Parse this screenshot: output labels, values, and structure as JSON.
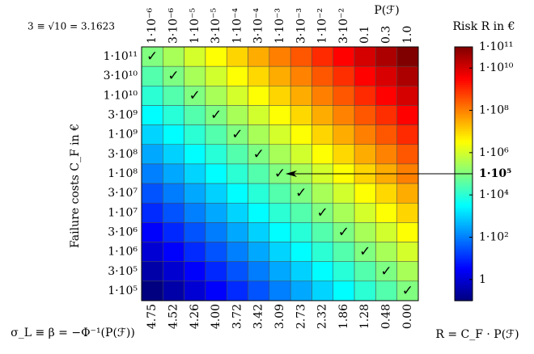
{
  "chart_data": {
    "type": "heatmap",
    "title": "P(ℱ)",
    "corner_note": "3 ≡ √10 = 3.1623",
    "y_label": "Failure costs C_F in €",
    "x2_label": "σ_L ≡ β = −Φ⁻¹(P(ℱ))",
    "colorbar_label": "Risk R in €",
    "formula": "R = C_F · P(ℱ)",
    "colormap": "jet",
    "log_scale": true,
    "columns": [
      "1·10⁻⁶",
      "3·10⁻⁶",
      "1·10⁻⁵",
      "3·10⁻⁵",
      "1·10⁻⁴",
      "3·10⁻⁴",
      "1·10⁻³",
      "3·10⁻³",
      "1·10⁻²",
      "3·10⁻²",
      "0.1",
      "0.3",
      "1.0"
    ],
    "beta_labels": [
      "4.75",
      "4.52",
      "4.26",
      "4.00",
      "3.72",
      "3.42",
      "3.09",
      "2.73",
      "2.32",
      "1.86",
      "1.28",
      "0.48",
      "0.00"
    ],
    "rows": [
      "1·10¹¹",
      "3·10¹⁰",
      "1·10¹⁰",
      "3·10⁹",
      "1·10⁹",
      "3·10⁸",
      "1·10⁸",
      "3·10⁷",
      "1·10⁷",
      "3·10⁶",
      "1·10⁶",
      "3·10⁵",
      "1·10⁵"
    ],
    "values": [
      [
        100000.0,
        300000.0,
        1000000.0,
        3000000.0,
        10000000.0,
        30000000.0,
        100000000.0,
        300000000.0,
        1000000000.0,
        3000000000.0,
        10000000000.0,
        30000000000.0,
        100000000000.0
      ],
      [
        30000.0,
        90000.0,
        300000.0,
        900000.0,
        3000000.0,
        9000000.0,
        30000000.0,
        90000000.0,
        300000000.0,
        900000000.0,
        3000000000.0,
        9000000000.0,
        30000000000.0
      ],
      [
        10000.0,
        30000.0,
        100000.0,
        300000.0,
        1000000.0,
        3000000.0,
        10000000.0,
        30000000.0,
        100000000.0,
        300000000.0,
        1000000000.0,
        3000000000.0,
        10000000000.0
      ],
      [
        3000.0,
        9000.0,
        30000.0,
        90000.0,
        300000.0,
        900000.0,
        3000000.0,
        9000000.0,
        30000000.0,
        90000000.0,
        300000000.0,
        900000000.0,
        3000000000.0
      ],
      [
        1000.0,
        3000.0,
        10000.0,
        30000.0,
        100000.0,
        300000.0,
        1000000.0,
        3000000.0,
        10000000.0,
        30000000.0,
        100000000.0,
        300000000.0,
        1000000000.0
      ],
      [
        300,
        900,
        3000.0,
        9000.0,
        30000.0,
        90000.0,
        300000.0,
        900000.0,
        3000000.0,
        9000000.0,
        30000000.0,
        90000000.0,
        300000000.0
      ],
      [
        100,
        300,
        1000.0,
        3000.0,
        10000.0,
        30000.0,
        100000.0,
        300000.0,
        1000000.0,
        3000000.0,
        10000000.0,
        30000000.0,
        100000000.0
      ],
      [
        30,
        90,
        300,
        900,
        3000.0,
        9000.0,
        30000.0,
        90000.0,
        300000.0,
        900000.0,
        3000000.0,
        9000000.0,
        30000000.0
      ],
      [
        10,
        30,
        100,
        300,
        1000.0,
        3000.0,
        10000.0,
        30000.0,
        100000.0,
        300000.0,
        1000000.0,
        3000000.0,
        10000000.0
      ],
      [
        3,
        9,
        30,
        90,
        300,
        900,
        3000.0,
        9000.0,
        30000.0,
        90000.0,
        300000.0,
        900000.0,
        3000000.0
      ],
      [
        1,
        3,
        10,
        30,
        100,
        300,
        1000.0,
        3000.0,
        10000.0,
        30000.0,
        100000.0,
        300000.0,
        1000000.0
      ],
      [
        0.3,
        0.9,
        3,
        9,
        30,
        90,
        300,
        900,
        3000.0,
        9000.0,
        30000.0,
        90000.0,
        300000.0
      ],
      [
        0.1,
        0.3,
        1,
        3,
        10,
        30,
        100,
        300,
        1000.0,
        3000.0,
        10000.0,
        30000.0,
        100000.0
      ]
    ],
    "diagonal_marks": [
      "✓",
      "✓",
      "✓",
      "✓",
      "✓",
      "✓",
      "✓",
      "✓",
      "✓",
      "✓",
      "✓",
      "✓",
      "✓"
    ],
    "clim": [
      0.1,
      100000000000.0
    ],
    "cticks": [
      {
        "value": 1,
        "label": "1"
      },
      {
        "value": 100,
        "label": "1·10²"
      },
      {
        "value": 10000,
        "label": "1·10⁴"
      },
      {
        "value": 1000000,
        "label": "1·10⁶"
      },
      {
        "value": 100000000,
        "label": "1·10⁸"
      },
      {
        "value": 10000000000,
        "label": "1·10¹⁰"
      },
      {
        "value": 100000000000,
        "label": "1·10¹¹"
      }
    ],
    "highlight": {
      "value": 100000,
      "label": "1·10⁵"
    }
  }
}
